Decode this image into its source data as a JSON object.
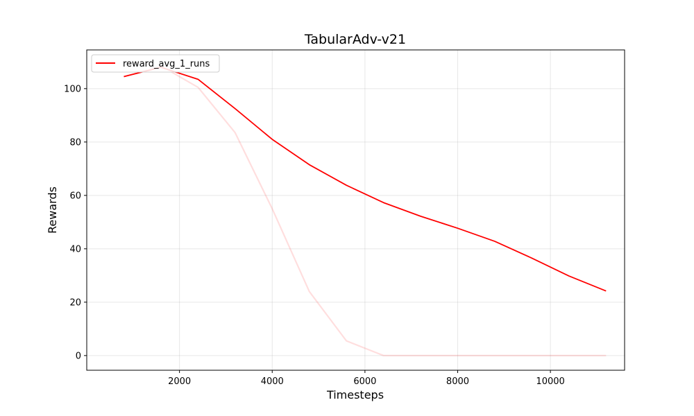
{
  "chart_data": {
    "type": "line",
    "title": "TabularAdv-v21",
    "xlabel": "Timesteps",
    "ylabel": "Rewards",
    "xlim": [
      0,
      11600
    ],
    "ylim": [
      -5.5,
      114.5
    ],
    "xticks": [
      2000,
      4000,
      6000,
      8000,
      10000
    ],
    "yticks": [
      0,
      20,
      40,
      60,
      80,
      100
    ],
    "grid": true,
    "legend": {
      "position": "top-left",
      "entries": [
        "reward_avg_1_runs"
      ]
    },
    "colors": {
      "main": "#ff0000",
      "raw": "#ff0000"
    },
    "series": [
      {
        "name": "reward_avg_1_runs",
        "x": [
          800,
          1600,
          2400,
          3200,
          4000,
          4800,
          5600,
          6400,
          7200,
          8000,
          8800,
          9600,
          10400,
          11200
        ],
        "y": [
          104.5,
          108.0,
          103.5,
          92.5,
          81.0,
          71.5,
          63.8,
          57.3,
          52.2,
          47.7,
          42.8,
          36.5,
          29.8,
          24.2
        ],
        "opacity": 1.0
      },
      {
        "x": [
          800,
          1600,
          2400,
          3200,
          4000,
          4800,
          5600,
          6400,
          7200,
          8000,
          8800,
          9600,
          10400,
          11200
        ],
        "y": [
          104.5,
          108.5,
          100.5,
          83.5,
          55.0,
          24.0,
          5.5,
          0,
          0,
          0,
          0,
          0,
          0,
          0
        ],
        "opacity": 0.13
      }
    ]
  }
}
